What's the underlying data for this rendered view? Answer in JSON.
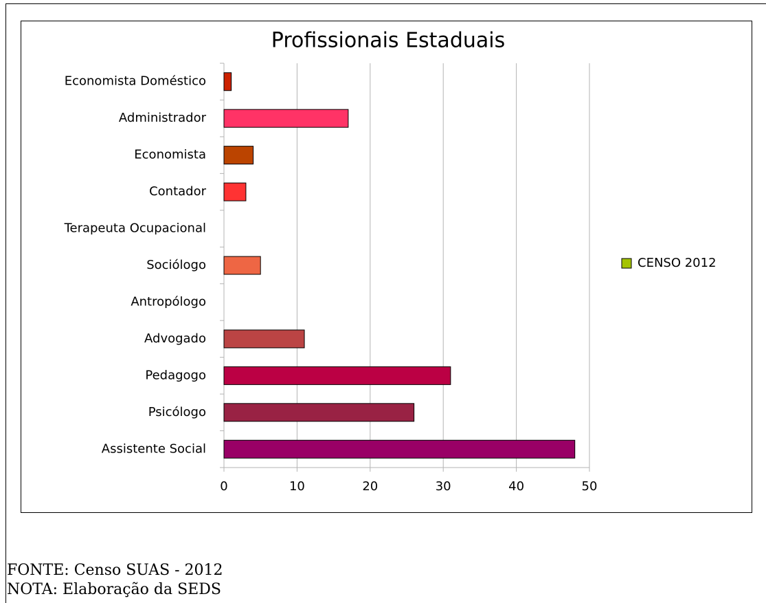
{
  "chart_data": {
    "type": "bar",
    "orientation": "horizontal",
    "title": "Profissionais Estaduais",
    "categories": [
      "Economista Doméstico",
      "Administrador",
      "Economista",
      "Contador",
      "Terapeuta Ocupacional",
      "Sociólogo",
      "Antropólogo",
      "Advogado",
      "Pedagogo",
      "Psicólogo",
      "Assistente Social"
    ],
    "series": [
      {
        "name": "CENSO 2012",
        "color": "#a4c400",
        "values": [
          1,
          17,
          4,
          3,
          0,
          5,
          0,
          11,
          31,
          26,
          48
        ]
      }
    ],
    "bar_colors": [
      "#cc2200",
      "#ff3366",
      "#bb4400",
      "#ff3333",
      "#cc6699",
      "#ee6644",
      "#aa3366",
      "#bb4444",
      "#bb0044",
      "#992244",
      "#990066"
    ],
    "xlim": [
      0,
      50
    ],
    "xticks": [
      0,
      10,
      20,
      30,
      40,
      50
    ],
    "grid": true,
    "legend": "right"
  },
  "footer": [
    "FONTE: Censo SUAS - 2012",
    "NOTA: Elaboração da SEDS"
  ]
}
